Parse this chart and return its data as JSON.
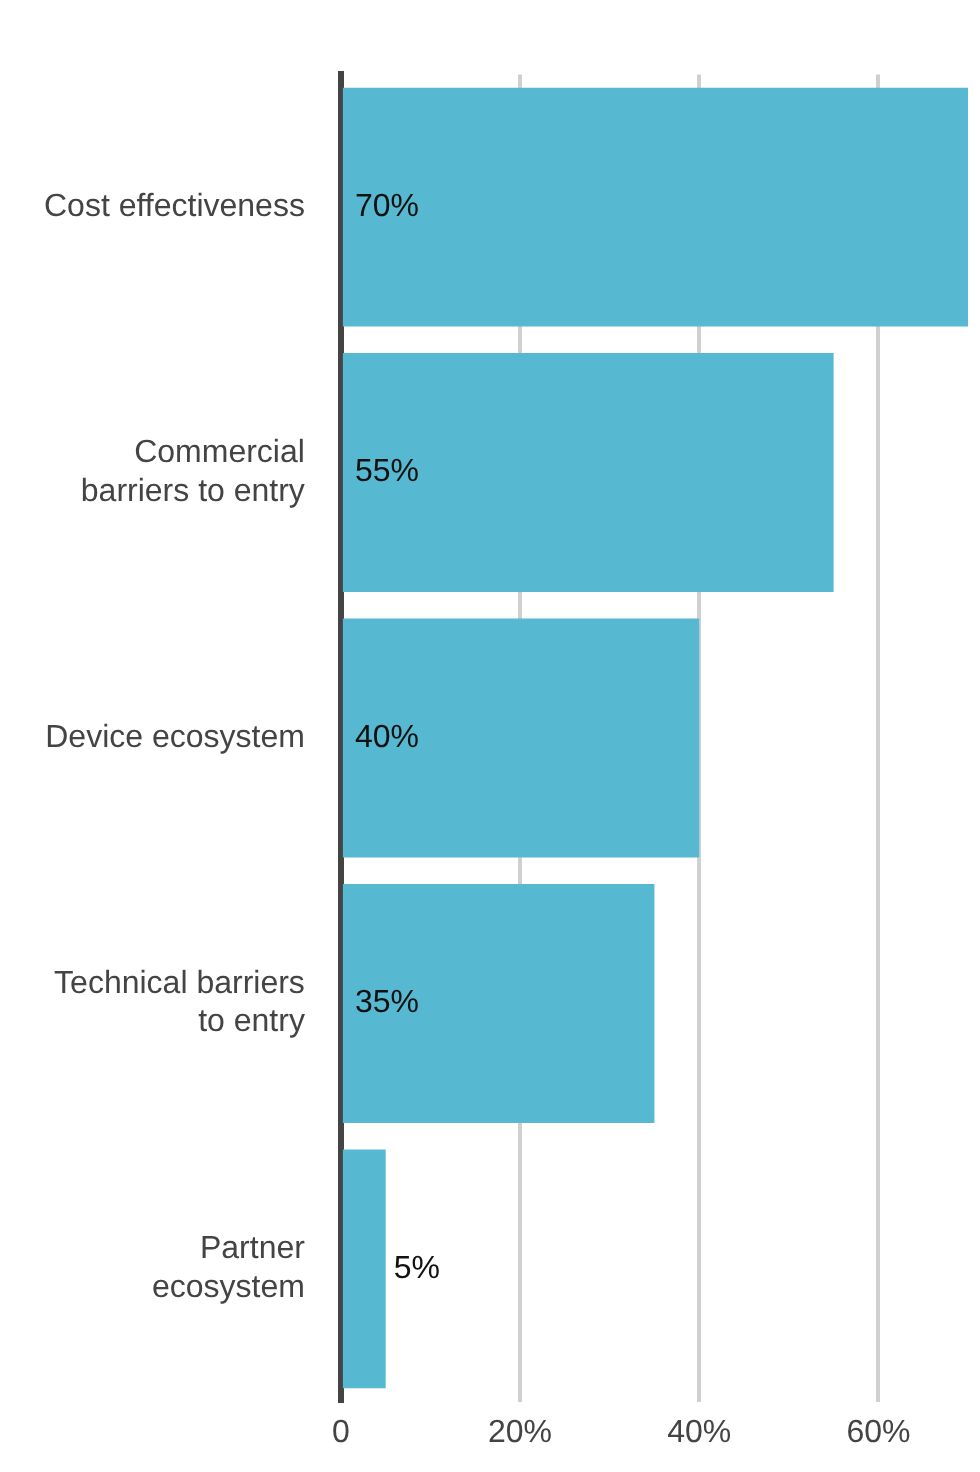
{
  "chart_data": {
    "type": "bar",
    "orientation": "horizontal",
    "categories": [
      "Cost effectiveness",
      "Commercial\nbarriers to entry",
      "Device ecosystem",
      "Technical barriers\nto entry",
      "Partner\necosystem"
    ],
    "values": [
      70,
      55,
      40,
      35,
      5
    ],
    "value_labels": [
      "70%",
      "55%",
      "40%",
      "35%",
      "5%"
    ],
    "color": "#56b8d1",
    "xlim": [
      0,
      70
    ],
    "xticks": [
      {
        "value": 0,
        "label": "0"
      },
      {
        "value": 20,
        "label": "20%"
      },
      {
        "value": 40,
        "label": "40%"
      },
      {
        "value": 60,
        "label": "60%"
      }
    ],
    "grid": "x",
    "legend": false
  }
}
